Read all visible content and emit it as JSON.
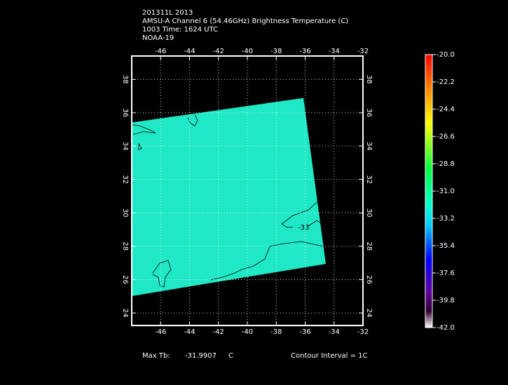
{
  "header": {
    "lines": [
      "201311L 2013",
      "AMSU-A Channel 6 (54.46GHz) Brightness Temperature (C)",
      "1003 Time: 1624 UTC",
      "NOAA-19"
    ]
  },
  "map": {
    "xlim": [
      -48,
      -32
    ],
    "xticks": [
      -46,
      -44,
      -42,
      -40,
      -38,
      -36,
      -34,
      -32
    ],
    "ylim": [
      23.25,
      39.4
    ],
    "yticks": [
      24,
      26,
      28,
      30,
      32,
      34,
      36,
      38
    ],
    "grid": true,
    "swath_color": "#1ee8c6",
    "contour_label": "-33"
  },
  "colorbar": {
    "lim": [
      -42,
      -20
    ],
    "ticks": [
      {
        "value": -20,
        "label": "-20.0"
      },
      {
        "value": -22.2,
        "label": "-22.2"
      },
      {
        "value": -24.4,
        "label": "-24.4"
      },
      {
        "value": -26.6,
        "label": "-26.6"
      },
      {
        "value": -28.8,
        "label": "-28.8"
      },
      {
        "value": -31,
        "label": "-31.0"
      },
      {
        "value": -33.2,
        "label": "-33.2"
      },
      {
        "value": -35.4,
        "label": "-35.4"
      },
      {
        "value": -37.6,
        "label": "-37.6"
      },
      {
        "value": -39.8,
        "label": "-39.8"
      },
      {
        "value": -42,
        "label": "-42.0"
      }
    ]
  },
  "footer": {
    "max_label": "Max Tb:",
    "max_value": -31.9907,
    "unit": "C",
    "interval": "Contour Interval = 1C"
  }
}
